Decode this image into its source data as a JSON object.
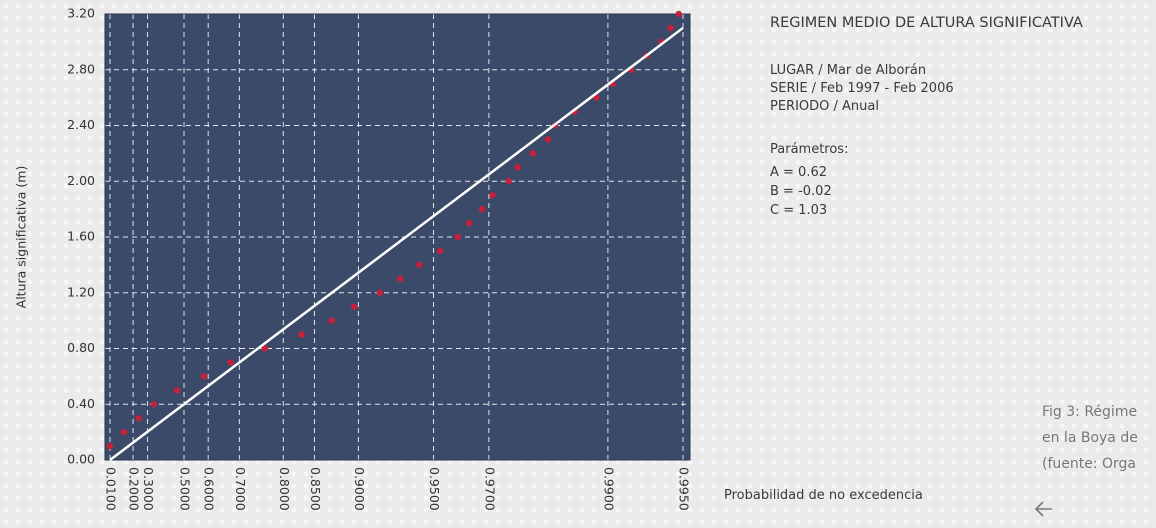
{
  "chart_data": {
    "type": "scatter",
    "title": "REGIMEN MEDIO DE ALTURA SIGNIFICATIVA",
    "info": [
      "LUGAR / Mar de Alborán",
      "SERIE / Feb 1997 - Feb 2006",
      "PERIODO / Anual"
    ],
    "parameters_heading": "Parámetros:",
    "parameters": [
      "A = 0.62",
      "B = -0.02",
      "C = 1.03"
    ],
    "x_label": "Probabilidad de no excedencia",
    "y_label": "Altura significativa (m)",
    "xscale": "exponential-probability",
    "xlim": [
      0.01,
      0.995
    ],
    "xticks": [
      {
        "value": 0.01,
        "label": "0.0100"
      },
      {
        "value": 0.2,
        "label": "0.2000"
      },
      {
        "value": 0.3,
        "label": "0.3000"
      },
      {
        "value": 0.5,
        "label": "0.5000"
      },
      {
        "value": 0.6,
        "label": "0.6000"
      },
      {
        "value": 0.7,
        "label": "0.7000"
      },
      {
        "value": 0.8,
        "label": "0.8000"
      },
      {
        "value": 0.85,
        "label": "0.8500"
      },
      {
        "value": 0.9,
        "label": "0.9000"
      },
      {
        "value": 0.95,
        "label": "0.9500"
      },
      {
        "value": 0.97,
        "label": "0.9700"
      },
      {
        "value": 0.99,
        "label": "0.9900"
      },
      {
        "value": 0.995,
        "label": "0.9950"
      }
    ],
    "ylim": [
      0,
      3.2
    ],
    "yticks": [
      {
        "value": 0,
        "label": "0.00"
      },
      {
        "value": 0.4,
        "label": "0.40"
      },
      {
        "value": 0.8,
        "label": "0.80"
      },
      {
        "value": 1.2,
        "label": "1.20"
      },
      {
        "value": 1.6,
        "label": "1.60"
      },
      {
        "value": 2.0,
        "label": "2.00"
      },
      {
        "value": 2.4,
        "label": "2.40"
      },
      {
        "value": 2.8,
        "label": "2.80"
      },
      {
        "value": 3.2,
        "label": "3.20"
      }
    ],
    "grid": true,
    "background": "#3b4a69",
    "series": [
      {
        "color": "#c8203a",
        "x": [
          0.01,
          0.13,
          0.24,
          0.34,
          0.466,
          0.584,
          0.675,
          0.763,
          0.831,
          0.872,
          0.896,
          0.918,
          0.932,
          0.943,
          0.953,
          0.96,
          0.964,
          0.968,
          0.971,
          0.975,
          0.977,
          0.98,
          0.9826,
          0.9837,
          0.9864,
          0.9889,
          0.9904,
          0.9919,
          0.993,
          0.9939,
          0.9944,
          0.9948
        ],
        "values": [
          0.1,
          0.2,
          0.3,
          0.4,
          0.5,
          0.6,
          0.7,
          0.8,
          0.9,
          1.0,
          1.1,
          1.2,
          1.3,
          1.4,
          1.5,
          1.6,
          1.7,
          1.8,
          1.9,
          2.0,
          2.1,
          2.2,
          2.3,
          2.4,
          2.5,
          2.6,
          2.7,
          2.8,
          2.9,
          3.0,
          3.1,
          3.2
        ]
      },
      {
        "type": "line",
        "color": "#ffffff",
        "x": [
          0.01,
          0.995
        ],
        "values": [
          0.0,
          3.1
        ]
      }
    ]
  },
  "caption": [
    "Fig 3: Régime",
    "en la Boya de",
    "(fuente: Orga"
  ]
}
